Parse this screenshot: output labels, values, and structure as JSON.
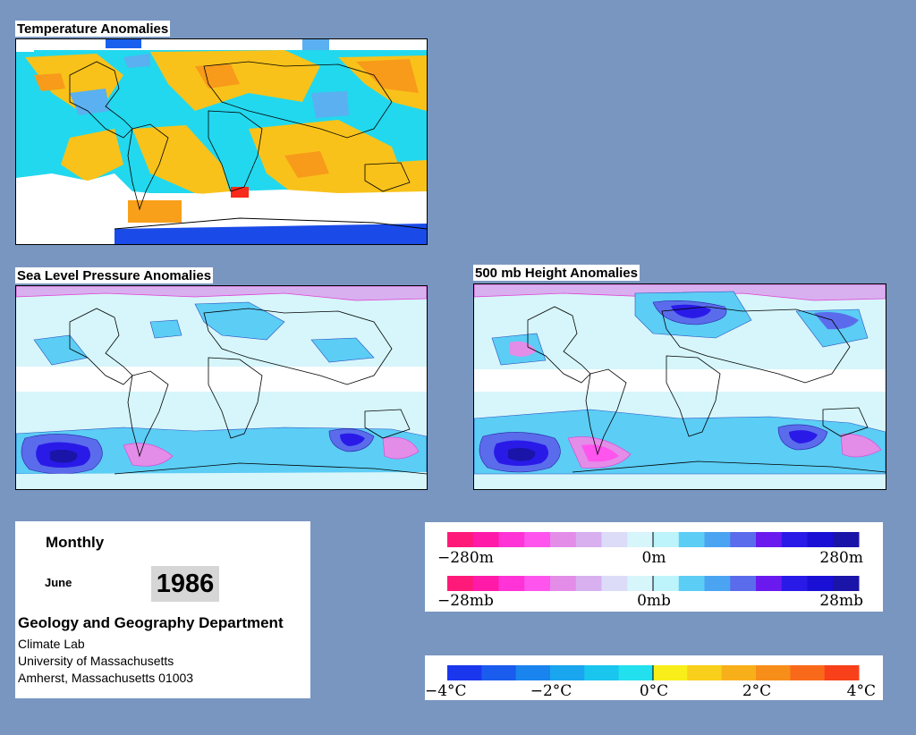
{
  "panels": {
    "temperature": {
      "title": "Temperature Anomalies"
    },
    "slp": {
      "title": "Sea Level Pressure Anomalies"
    },
    "height500": {
      "title": "500 mb Height Anomalies"
    }
  },
  "info": {
    "frequency": "Monthly",
    "month": "June",
    "year": "1986",
    "department": "Geology and Geography Department",
    "lines": [
      "Climate Lab",
      "University of Massachusetts",
      "Amherst, Massachusetts 01003"
    ]
  },
  "legends": {
    "height": {
      "labels": [
        "−280m",
        "0m",
        "280m"
      ]
    },
    "pressure": {
      "labels": [
        "−28mb",
        "0mb",
        "28mb"
      ]
    },
    "temperature": {
      "labels": [
        "−4°C",
        "−2°C",
        "0°C",
        "2°C",
        "4°C"
      ]
    }
  },
  "colors": {
    "background": "#7996c0",
    "anomaly_scale": [
      "#ff1a7a",
      "#ff1aa8",
      "#ff33d6",
      "#ff55ee",
      "#e38ce8",
      "#d8b0f0",
      "#dcdcf8",
      "#d6f6fb",
      "#bdf3fb",
      "#5ccdf5",
      "#4aa4f1",
      "#5a6cec",
      "#6a1aee",
      "#2a1ae8",
      "#1a0fd5",
      "#1a14a8"
    ],
    "temperature_scale": [
      "#1a37ee",
      "#1a5cee",
      "#1a84ee",
      "#1aa6ee",
      "#1ac6ee",
      "#22e0ee",
      "#f8ee1a",
      "#f8cf1a",
      "#f8b01a",
      "#f88e1a",
      "#f86a1a",
      "#f8401a"
    ]
  }
}
